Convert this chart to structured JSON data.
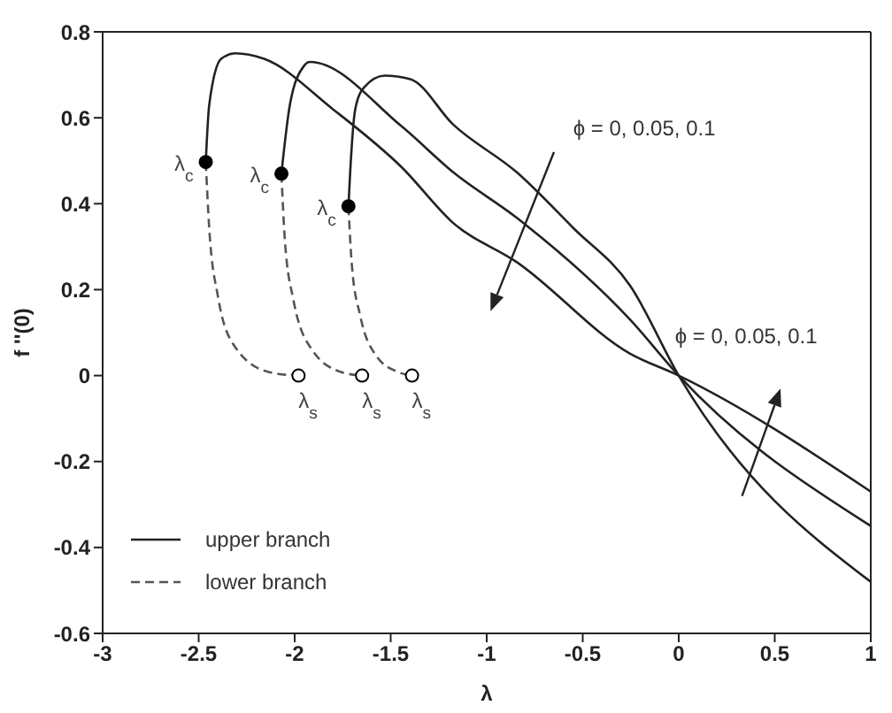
{
  "chart_data": {
    "type": "line",
    "xlabel": "λ",
    "ylabel": "f ''(0)",
    "xlim": [
      -3,
      1
    ],
    "ylim": [
      -0.6,
      0.8
    ],
    "xticks": [
      -3,
      -2.5,
      -2,
      -1.5,
      -1,
      -0.5,
      0,
      0.5,
      1
    ],
    "yticks": [
      -0.6,
      -0.4,
      -0.2,
      0,
      0.2,
      0.4,
      0.6,
      0.8
    ],
    "legend": "bottom left",
    "marker": "none",
    "series": [
      {
        "name": "upper branch",
        "color": "#222222",
        "line_style": "solid",
        "x": [
          -2.463,
          -2.445,
          -2.383,
          -2.311,
          -2.159,
          -1.801,
          -1.443,
          -1.174,
          -0.843,
          -0.253,
          0,
          1
        ],
        "values": [
          0.497,
          0.63,
          0.737,
          0.75,
          0.737,
          0.62,
          0.485,
          0.355,
          0.264,
          0.051,
          0,
          -0.27
        ]
      },
      {
        "color": "#222222",
        "line_style": "solid",
        "x": [
          -2.069,
          -2.025,
          -1.953,
          -1.92,
          -1.443,
          -1.174,
          -0.843,
          -0.253,
          0,
          1
        ],
        "values": [
          0.47,
          0.63,
          0.72,
          0.73,
          0.58,
          0.473,
          0.367,
          0.13,
          0,
          -0.35
        ]
      },
      {
        "color": "#222222",
        "line_style": "solid",
        "x": [
          -1.72,
          -1.711,
          -1.685,
          -1.64,
          -1.532,
          -1.398,
          -1.174,
          -0.843,
          -0.548,
          -0.253,
          0,
          1
        ],
        "values": [
          0.394,
          0.473,
          0.619,
          0.67,
          0.698,
          0.69,
          0.584,
          0.473,
          0.343,
          0.209,
          0,
          -0.48
        ]
      },
      {
        "name": "lower branch",
        "color": "#555555",
        "line_style": "dashed",
        "x": [
          -2.463,
          -2.445,
          -2.4,
          -2.311,
          -2.132,
          -1.98
        ],
        "values": [
          0.497,
          0.343,
          0.185,
          0.067,
          0.008,
          0
        ]
      },
      {
        "color": "#555555",
        "line_style": "dashed",
        "x": [
          -2.069,
          -2.051,
          -2.007,
          -1.908,
          -1.756,
          -1.649
        ],
        "values": [
          0.47,
          0.315,
          0.177,
          0.059,
          0.008,
          0
        ]
      },
      {
        "color": "#555555",
        "line_style": "dashed",
        "x": [
          -1.72,
          -1.702,
          -1.658,
          -1.577,
          -1.46,
          -1.389
        ],
        "values": [
          0.394,
          0.256,
          0.138,
          0.047,
          0.008,
          0
        ]
      },
      {
        "type": "scatter",
        "marker": "circle",
        "color": "#000000",
        "x": [
          -2.463,
          -2.069,
          -1.72
        ],
        "values": [
          0.497,
          0.47,
          0.394
        ]
      },
      {
        "type": "scatter",
        "marker": "circle",
        "color": "#ffffff",
        "x": [
          -1.98,
          -1.649,
          -1.389
        ],
        "values": [
          0,
          0,
          0
        ]
      }
    ],
    "annotations": [
      {
        "text": "λ$_{c}$",
        "x": -2.463,
        "y": 0.497
      },
      {
        "text": "λ$_{c}$",
        "x": -2.069,
        "y": 0.47
      },
      {
        "text": "λ$_{c}$",
        "x": -1.72,
        "y": 0.394
      },
      {
        "text": "λ$_{s}$",
        "x": -1.98,
        "y": 0
      },
      {
        "text": "λ$_{s}$",
        "x": -1.649,
        "y": 0
      },
      {
        "text": "λ$_{s}$",
        "x": -1.389,
        "y": 0
      },
      "ϕ = 0, 0.05, 0.1",
      "ϕ = 0, 0.05, 0.1"
    ]
  }
}
